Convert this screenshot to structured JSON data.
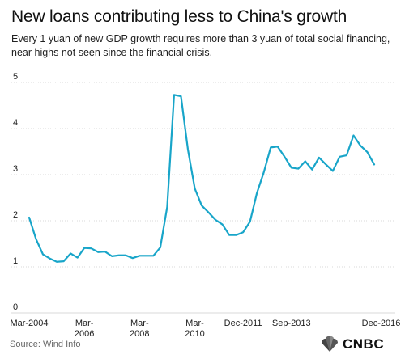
{
  "header": {
    "title": "New loans contributing less to China's growth",
    "subtitle": "Every 1 yuan of new GDP growth requires more than 3 yuan of total social financing, near highs not seen since the financial crisis."
  },
  "footer": {
    "source": "Source: Wind Info",
    "logo_text": "CNBC"
  },
  "colors": {
    "line": "#18a5c9",
    "grid": "#d9d9d9",
    "axis_text": "#222222"
  },
  "chart_data": {
    "type": "line",
    "title": "",
    "xlabel": "",
    "ylabel": "",
    "ylim": [
      0,
      5
    ],
    "yticks": [
      0,
      1,
      2,
      3,
      4,
      5
    ],
    "grid": true,
    "x_tick_labels": [
      {
        "label": "Mar-2004",
        "index": 0
      },
      {
        "label": "Mar-\n2006",
        "index": 8
      },
      {
        "label": "Mar-\n2008",
        "index": 16
      },
      {
        "label": "Mar-\n2010",
        "index": 24
      },
      {
        "label": "Dec-2011",
        "index": 31
      },
      {
        "label": "Sep-2013",
        "index": 38
      },
      {
        "label": "Dec-2016",
        "index": 51
      }
    ],
    "series": [
      {
        "values": [
          2.07,
          1.6,
          1.27,
          1.18,
          1.11,
          1.12,
          1.29,
          1.2,
          1.41,
          1.4,
          1.32,
          1.33,
          1.23,
          1.25,
          1.25,
          1.19,
          1.24,
          1.24,
          1.24,
          1.42,
          2.3,
          4.73,
          4.7,
          3.55,
          2.7,
          2.33,
          2.18,
          2.02,
          1.92,
          1.69,
          1.69,
          1.75,
          1.98,
          2.6,
          3.05,
          3.59,
          3.61,
          3.39,
          3.15,
          3.13,
          3.29,
          3.11,
          3.37,
          3.22,
          3.08,
          3.39,
          3.42,
          3.85,
          3.63,
          3.49,
          3.22
        ]
      }
    ]
  }
}
